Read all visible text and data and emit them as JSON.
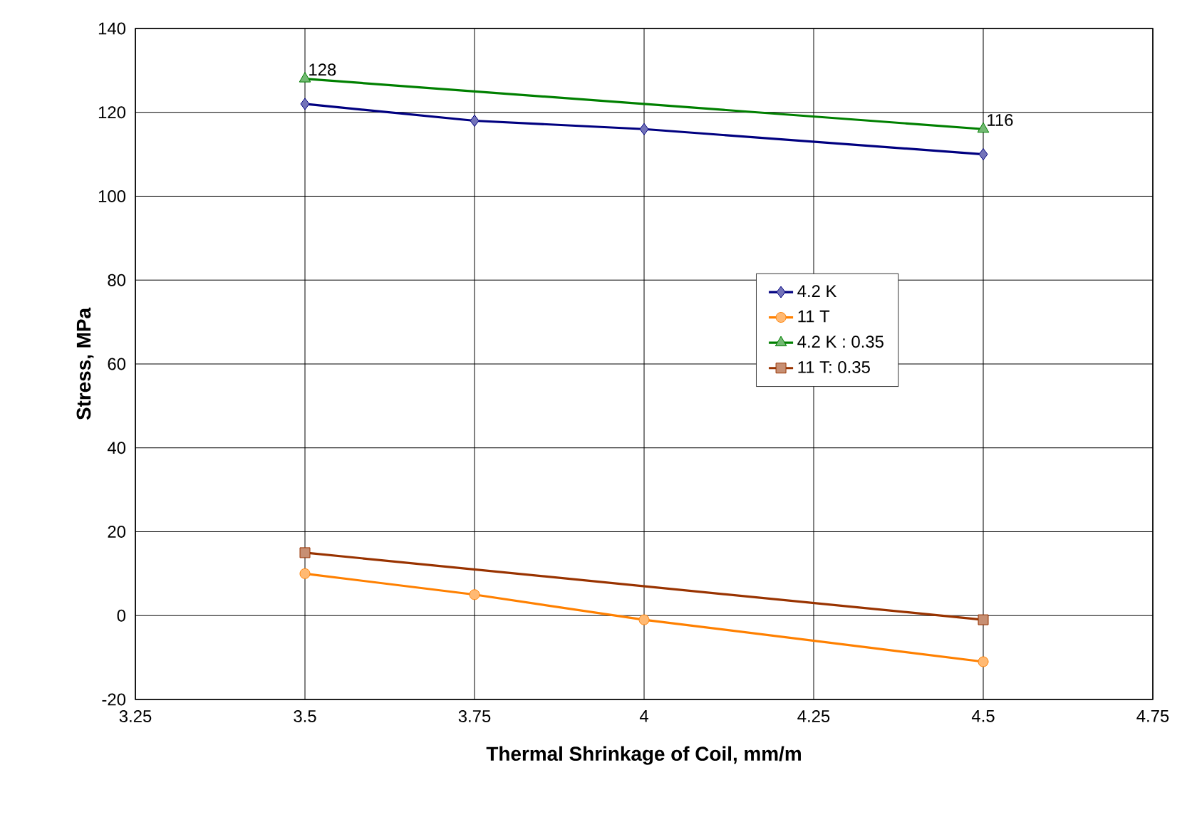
{
  "chart_data": {
    "type": "line",
    "xlabel": "Thermal Shrinkage of Coil, mm/m",
    "ylabel": "Stress, MPa",
    "xlim": [
      3.25,
      4.75
    ],
    "xticks": [
      3.25,
      3.5,
      3.75,
      4,
      4.25,
      4.5,
      4.75
    ],
    "ylim": [
      -20,
      140
    ],
    "yticks": [
      -20,
      0,
      20,
      40,
      60,
      80,
      100,
      120,
      140
    ],
    "grid": true,
    "legend": "right",
    "line_style": "solid",
    "series": [
      {
        "name": "4.2 K",
        "color": "#000080",
        "marker": "diamond",
        "x": [
          3.5,
          3.75,
          4,
          4.5
        ],
        "values": [
          122,
          118,
          116,
          110
        ]
      },
      {
        "name": "11 T",
        "color": "#ff8000",
        "marker": "circle",
        "x": [
          3.5,
          3.75,
          4,
          4.5
        ],
        "values": [
          10,
          5,
          -1,
          -11
        ]
      },
      {
        "name": "4.2 K : 0.35",
        "color": "#008000",
        "marker": "triangle",
        "x": [
          3.5,
          4.5
        ],
        "values": [
          128,
          116
        ],
        "value_labels": [
          "128",
          "116"
        ]
      },
      {
        "name": "11 T: 0.35",
        "color": "#993300",
        "marker": "square",
        "x": [
          3.5,
          4.5
        ],
        "values": [
          15,
          -1
        ]
      }
    ]
  }
}
